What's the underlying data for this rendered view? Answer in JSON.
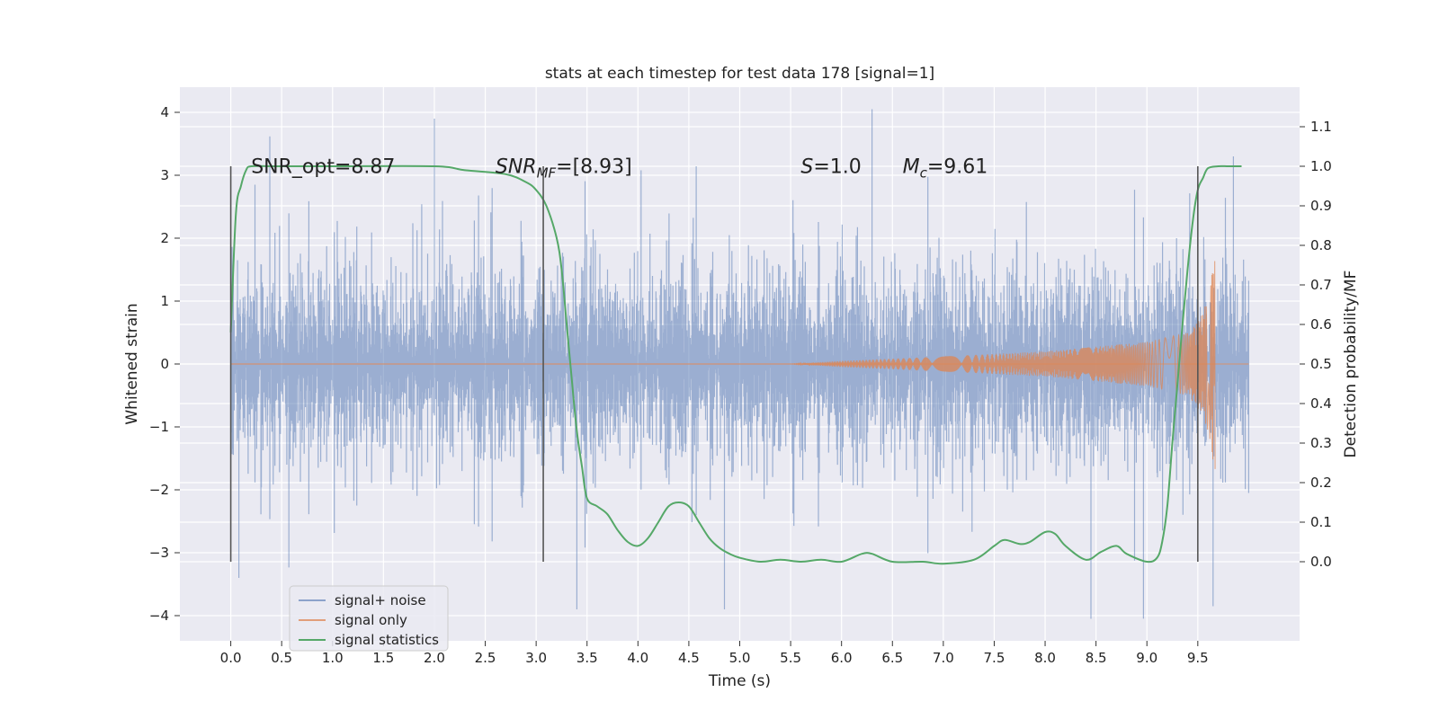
{
  "chart_data": {
    "type": "line",
    "title": "stats at each timestep for test data 178 [signal=1]",
    "xlabel": "Time (s)",
    "ylabel": "Whitened strain",
    "ylabel_right": "Detection probability/MF",
    "xlim": [
      -0.5,
      10.5
    ],
    "ylim": [
      -4.4,
      4.4
    ],
    "ylim_right": [
      -0.2,
      1.2
    ],
    "x_ticks": [
      0.0,
      0.5,
      1.0,
      1.5,
      2.0,
      2.5,
      3.0,
      3.5,
      4.0,
      4.5,
      5.0,
      5.5,
      6.0,
      6.5,
      7.0,
      7.5,
      8.0,
      8.5,
      9.0,
      9.5
    ],
    "x_tick_labels": [
      "0.0",
      "0.5",
      "1.0",
      "1.5",
      "2.0",
      "2.5",
      "3.0",
      "3.5",
      "4.0",
      "4.5",
      "5.0",
      "5.5",
      "6.0",
      "6.5",
      "7.0",
      "7.5",
      "8.0",
      "8.5",
      "9.0",
      "9.5"
    ],
    "y_ticks": [
      -4,
      -3,
      -2,
      -1,
      0,
      1,
      2,
      3,
      4
    ],
    "y_tick_labels": [
      "−4",
      "−3",
      "−2",
      "−1",
      "0",
      "1",
      "2",
      "3",
      "4"
    ],
    "y_ticks_right": [
      0.0,
      0.1,
      0.2,
      0.3,
      0.4,
      0.5,
      0.6,
      0.7,
      0.8,
      0.9,
      1.0,
      1.1
    ],
    "y_tick_labels_right": [
      "0.0",
      "0.1",
      "0.2",
      "0.3",
      "0.4",
      "0.5",
      "0.6",
      "0.7",
      "0.8",
      "0.9",
      "1.0",
      "1.1"
    ],
    "grid": true,
    "legend_position": "bottom-left",
    "colors": {
      "plot_bg": "#eaeaf2",
      "grid": "#ffffff",
      "noise": "#4c72b0",
      "signal": "#dd8452",
      "stats": "#55a868",
      "vline": "#555555"
    },
    "vertical_lines": [
      0.0,
      3.07,
      9.5
    ],
    "annotations": [
      {
        "x": 0.2,
        "y": 3.15,
        "text": "SNR_opt=8.87"
      },
      {
        "x": 2.6,
        "y": 3.15,
        "text": "SNR",
        "sub": "MF",
        "rest": "=[8.93]"
      },
      {
        "x": 5.6,
        "y": 3.15,
        "text": "S",
        "sub": "",
        "rest": "=1.0"
      },
      {
        "x": 6.6,
        "y": 3.15,
        "text": "M",
        "sub": "c",
        "rest": "=9.61"
      }
    ],
    "series": [
      {
        "name": "signal+ noise",
        "description_type": "noise",
        "x_range": [
          0.0,
          10.0
        ],
        "typical_amplitude": 1.3,
        "peak_amplitude": 4.0,
        "peaks": [
          {
            "x": 2.0,
            "y": 3.9
          },
          {
            "x": 6.3,
            "y": 4.05
          },
          {
            "x": 3.4,
            "y": -3.9
          },
          {
            "x": 4.85,
            "y": -3.9
          },
          {
            "x": 8.45,
            "y": -4.05
          },
          {
            "x": 9.65,
            "y": -3.85
          },
          {
            "x": 0.08,
            "y": -3.4
          },
          {
            "x": 9.85,
            "y": 3.3
          }
        ]
      },
      {
        "name": "signal only",
        "description_type": "chirp",
        "x_range": [
          0.0,
          9.67
        ],
        "envelope": [
          {
            "x": 5.5,
            "y": 0.0
          },
          {
            "x": 6.0,
            "y": 0.05
          },
          {
            "x": 7.0,
            "y": 0.12
          },
          {
            "x": 8.0,
            "y": 0.2
          },
          {
            "x": 9.0,
            "y": 0.35
          },
          {
            "x": 9.4,
            "y": 0.5
          },
          {
            "x": 9.55,
            "y": 0.8
          },
          {
            "x": 9.62,
            "y": 1.2
          },
          {
            "x": 9.66,
            "y": 1.7
          }
        ],
        "merger_x": 9.67
      },
      {
        "name": "signal statistics",
        "axis": "right",
        "x": [
          0.0,
          0.05,
          0.1,
          0.15,
          0.2,
          0.4,
          1.0,
          2.0,
          2.3,
          2.7,
          2.9,
          3.0,
          3.1,
          3.2,
          3.25,
          3.3,
          3.35,
          3.4,
          3.45,
          3.5,
          3.6,
          3.7,
          3.8,
          3.9,
          4.0,
          4.1,
          4.2,
          4.3,
          4.4,
          4.5,
          4.6,
          4.7,
          4.8,
          4.9,
          5.0,
          5.2,
          5.4,
          5.6,
          5.8,
          6.0,
          6.2,
          6.3,
          6.5,
          6.8,
          7.0,
          7.3,
          7.5,
          7.6,
          7.75,
          7.85,
          8.0,
          8.1,
          8.2,
          8.4,
          8.55,
          8.7,
          8.8,
          9.0,
          9.1,
          9.15,
          9.2,
          9.25,
          9.3,
          9.35,
          9.4,
          9.45,
          9.5,
          9.55,
          9.6,
          9.7,
          9.8,
          9.93
        ],
        "values": [
          0.58,
          0.88,
          0.95,
          0.99,
          1.0,
          1.0,
          1.0,
          1.0,
          0.99,
          0.98,
          0.96,
          0.94,
          0.9,
          0.82,
          0.74,
          0.6,
          0.46,
          0.33,
          0.24,
          0.16,
          0.14,
          0.12,
          0.08,
          0.05,
          0.04,
          0.06,
          0.1,
          0.14,
          0.15,
          0.14,
          0.1,
          0.06,
          0.035,
          0.02,
          0.01,
          0.0,
          0.005,
          0.0,
          0.005,
          0.0,
          0.02,
          0.02,
          0.0,
          0.0,
          -0.005,
          0.005,
          0.04,
          0.055,
          0.045,
          0.05,
          0.075,
          0.07,
          0.04,
          0.005,
          0.025,
          0.04,
          0.02,
          0.0,
          0.01,
          0.05,
          0.14,
          0.3,
          0.45,
          0.6,
          0.74,
          0.86,
          0.94,
          0.97,
          0.995,
          1.0,
          1.0,
          1.0
        ]
      }
    ]
  }
}
